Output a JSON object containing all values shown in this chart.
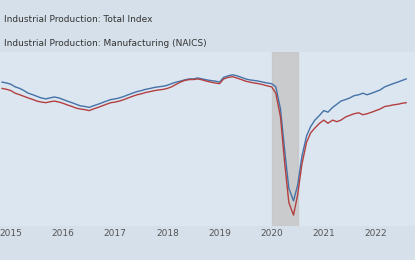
{
  "title_line1": "Industrial Production: Total Index",
  "title_line2": "Industrial Production: Manufacturing (NAICS)",
  "color_total": "#4472a8",
  "color_manufacturing": "#b34040",
  "shaded_region_color": "#c8c8c8",
  "fig_bg_color": "#d6e0ea",
  "plot_bg_color": "#dce6f0",
  "tick_label_color": "#555555",
  "header_text_color": "#333333",
  "xlim": [
    2014.79,
    2022.75
  ],
  "ylim": [
    60,
    115
  ],
  "shaded_xmin": 2020.0,
  "shaded_xmax": 2020.5,
  "xlabel_ticks": [
    2015,
    2016,
    2017,
    2018,
    2019,
    2020,
    2021,
    2022
  ],
  "xlabel_labels": [
    "2015",
    "2016",
    "2017",
    "2018",
    "2019",
    "2020",
    "2021",
    "2022"
  ],
  "total_index_x": [
    2014.83,
    2014.92,
    2015.0,
    2015.08,
    2015.17,
    2015.25,
    2015.33,
    2015.42,
    2015.5,
    2015.58,
    2015.67,
    2015.75,
    2015.83,
    2015.92,
    2016.0,
    2016.08,
    2016.17,
    2016.25,
    2016.33,
    2016.42,
    2016.5,
    2016.58,
    2016.67,
    2016.75,
    2016.83,
    2016.92,
    2017.0,
    2017.08,
    2017.17,
    2017.25,
    2017.33,
    2017.42,
    2017.5,
    2017.58,
    2017.67,
    2017.75,
    2017.83,
    2017.92,
    2018.0,
    2018.08,
    2018.17,
    2018.25,
    2018.33,
    2018.42,
    2018.5,
    2018.58,
    2018.67,
    2018.75,
    2018.83,
    2018.92,
    2019.0,
    2019.08,
    2019.17,
    2019.25,
    2019.33,
    2019.42,
    2019.5,
    2019.58,
    2019.67,
    2019.75,
    2019.83,
    2019.92,
    2020.0,
    2020.08,
    2020.17,
    2020.25,
    2020.33,
    2020.42,
    2020.5,
    2020.58,
    2020.67,
    2020.75,
    2020.83,
    2020.92,
    2021.0,
    2021.08,
    2021.17,
    2021.25,
    2021.33,
    2021.42,
    2021.5,
    2021.58,
    2021.67,
    2021.75,
    2021.83,
    2021.92,
    2022.0,
    2022.08,
    2022.17,
    2022.25,
    2022.33,
    2022.42,
    2022.5,
    2022.58
  ],
  "total_index_y": [
    105.5,
    105.2,
    104.8,
    104.0,
    103.5,
    102.8,
    102.0,
    101.5,
    101.0,
    100.5,
    100.2,
    100.5,
    100.8,
    100.5,
    100.0,
    99.5,
    99.0,
    98.5,
    98.0,
    97.8,
    97.5,
    98.0,
    98.5,
    99.0,
    99.5,
    100.0,
    100.2,
    100.5,
    101.0,
    101.5,
    102.0,
    102.5,
    102.8,
    103.2,
    103.5,
    103.8,
    104.0,
    104.2,
    104.5,
    105.0,
    105.5,
    105.8,
    106.2,
    106.5,
    106.5,
    106.8,
    106.5,
    106.2,
    106.0,
    105.8,
    105.5,
    107.0,
    107.5,
    107.8,
    107.5,
    107.0,
    106.5,
    106.2,
    106.0,
    105.8,
    105.5,
    105.2,
    105.0,
    104.0,
    97.0,
    84.0,
    72.0,
    68.0,
    73.0,
    82.0,
    88.5,
    91.5,
    93.5,
    95.0,
    96.5,
    96.0,
    97.5,
    98.5,
    99.5,
    100.0,
    100.5,
    101.2,
    101.5,
    102.0,
    101.5,
    102.0,
    102.5,
    103.0,
    104.0,
    104.5,
    105.0,
    105.5,
    106.0,
    106.5
  ],
  "manufacturing_x": [
    2014.83,
    2014.92,
    2015.0,
    2015.08,
    2015.17,
    2015.25,
    2015.33,
    2015.42,
    2015.5,
    2015.58,
    2015.67,
    2015.75,
    2015.83,
    2015.92,
    2016.0,
    2016.08,
    2016.17,
    2016.25,
    2016.33,
    2016.42,
    2016.5,
    2016.58,
    2016.67,
    2016.75,
    2016.83,
    2016.92,
    2017.0,
    2017.08,
    2017.17,
    2017.25,
    2017.33,
    2017.42,
    2017.5,
    2017.58,
    2017.67,
    2017.75,
    2017.83,
    2017.92,
    2018.0,
    2018.08,
    2018.17,
    2018.25,
    2018.33,
    2018.42,
    2018.5,
    2018.58,
    2018.67,
    2018.75,
    2018.83,
    2018.92,
    2019.0,
    2019.08,
    2019.17,
    2019.25,
    2019.33,
    2019.42,
    2019.5,
    2019.58,
    2019.67,
    2019.75,
    2019.83,
    2019.92,
    2020.0,
    2020.08,
    2020.17,
    2020.25,
    2020.33,
    2020.42,
    2020.5,
    2020.58,
    2020.67,
    2020.75,
    2020.83,
    2020.92,
    2021.0,
    2021.08,
    2021.17,
    2021.25,
    2021.33,
    2021.42,
    2021.5,
    2021.58,
    2021.67,
    2021.75,
    2021.83,
    2021.92,
    2022.0,
    2022.08,
    2022.17,
    2022.25,
    2022.33,
    2022.42,
    2022.5,
    2022.58
  ],
  "manufacturing_y": [
    103.5,
    103.2,
    102.8,
    102.0,
    101.5,
    101.0,
    100.5,
    100.0,
    99.5,
    99.2,
    99.0,
    99.3,
    99.5,
    99.2,
    98.8,
    98.3,
    97.8,
    97.3,
    97.0,
    96.8,
    96.5,
    97.0,
    97.5,
    98.0,
    98.5,
    99.0,
    99.2,
    99.5,
    100.0,
    100.5,
    101.0,
    101.5,
    101.8,
    102.2,
    102.5,
    102.8,
    103.0,
    103.2,
    103.5,
    104.0,
    104.8,
    105.5,
    106.0,
    106.3,
    106.3,
    106.5,
    106.2,
    105.8,
    105.5,
    105.2,
    105.0,
    106.5,
    107.0,
    107.2,
    106.8,
    106.3,
    105.8,
    105.5,
    105.2,
    105.0,
    104.7,
    104.3,
    104.0,
    102.0,
    94.5,
    80.0,
    67.5,
    63.5,
    70.0,
    79.5,
    86.5,
    89.5,
    91.0,
    92.5,
    93.5,
    92.5,
    93.5,
    93.0,
    93.5,
    94.5,
    95.0,
    95.5,
    95.8,
    95.2,
    95.5,
    96.0,
    96.5,
    97.0,
    97.8,
    98.0,
    98.3,
    98.5,
    98.8,
    99.0
  ]
}
